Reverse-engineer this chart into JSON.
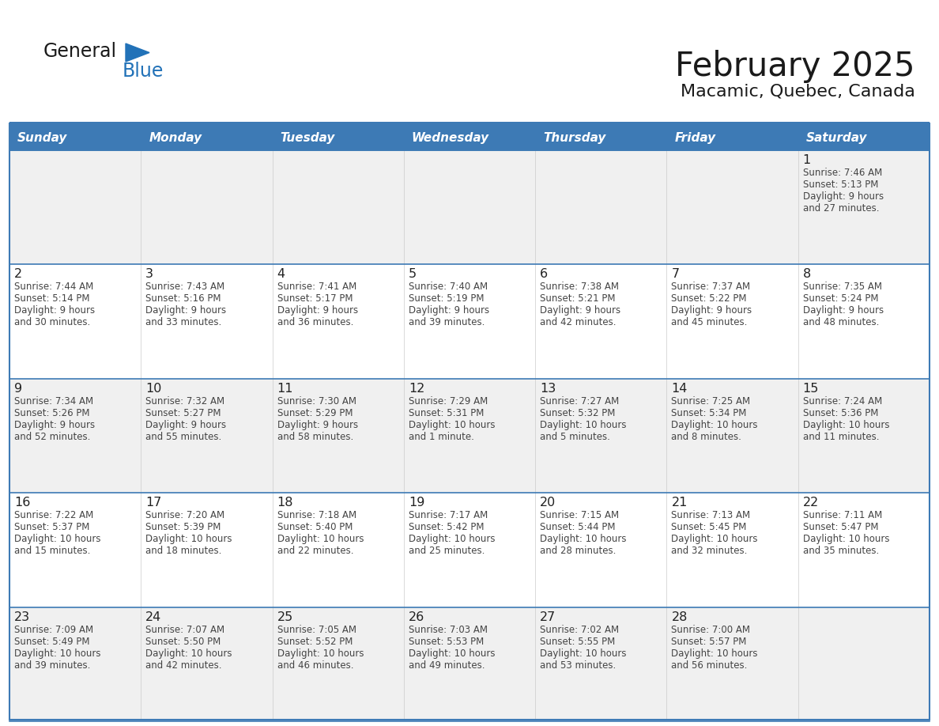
{
  "title": "February 2025",
  "subtitle": "Macamic, Quebec, Canada",
  "header_bg": "#3d7ab5",
  "header_text": "#ffffff",
  "row_bg_light": "#f0f0f0",
  "row_bg_white": "#ffffff",
  "border_color": "#3d7ab5",
  "cell_border": "#aaaaaa",
  "text_color": "#333333",
  "days_of_week": [
    "Sunday",
    "Monday",
    "Tuesday",
    "Wednesday",
    "Thursday",
    "Friday",
    "Saturday"
  ],
  "logo_black": "#1a1a1a",
  "logo_blue": "#2272b8",
  "calendar": [
    [
      null,
      null,
      null,
      null,
      null,
      null,
      {
        "day": "1",
        "sunrise": "7:46 AM",
        "sunset": "5:13 PM",
        "daylight": "9 hours",
        "daylight2": "and 27 minutes."
      }
    ],
    [
      {
        "day": "2",
        "sunrise": "7:44 AM",
        "sunset": "5:14 PM",
        "daylight": "9 hours",
        "daylight2": "and 30 minutes."
      },
      {
        "day": "3",
        "sunrise": "7:43 AM",
        "sunset": "5:16 PM",
        "daylight": "9 hours",
        "daylight2": "and 33 minutes."
      },
      {
        "day": "4",
        "sunrise": "7:41 AM",
        "sunset": "5:17 PM",
        "daylight": "9 hours",
        "daylight2": "and 36 minutes."
      },
      {
        "day": "5",
        "sunrise": "7:40 AM",
        "sunset": "5:19 PM",
        "daylight": "9 hours",
        "daylight2": "and 39 minutes."
      },
      {
        "day": "6",
        "sunrise": "7:38 AM",
        "sunset": "5:21 PM",
        "daylight": "9 hours",
        "daylight2": "and 42 minutes."
      },
      {
        "day": "7",
        "sunrise": "7:37 AM",
        "sunset": "5:22 PM",
        "daylight": "9 hours",
        "daylight2": "and 45 minutes."
      },
      {
        "day": "8",
        "sunrise": "7:35 AM",
        "sunset": "5:24 PM",
        "daylight": "9 hours",
        "daylight2": "and 48 minutes."
      }
    ],
    [
      {
        "day": "9",
        "sunrise": "7:34 AM",
        "sunset": "5:26 PM",
        "daylight": "9 hours",
        "daylight2": "and 52 minutes."
      },
      {
        "day": "10",
        "sunrise": "7:32 AM",
        "sunset": "5:27 PM",
        "daylight": "9 hours",
        "daylight2": "and 55 minutes."
      },
      {
        "day": "11",
        "sunrise": "7:30 AM",
        "sunset": "5:29 PM",
        "daylight": "9 hours",
        "daylight2": "and 58 minutes."
      },
      {
        "day": "12",
        "sunrise": "7:29 AM",
        "sunset": "5:31 PM",
        "daylight": "10 hours",
        "daylight2": "and 1 minute."
      },
      {
        "day": "13",
        "sunrise": "7:27 AM",
        "sunset": "5:32 PM",
        "daylight": "10 hours",
        "daylight2": "and 5 minutes."
      },
      {
        "day": "14",
        "sunrise": "7:25 AM",
        "sunset": "5:34 PM",
        "daylight": "10 hours",
        "daylight2": "and 8 minutes."
      },
      {
        "day": "15",
        "sunrise": "7:24 AM",
        "sunset": "5:36 PM",
        "daylight": "10 hours",
        "daylight2": "and 11 minutes."
      }
    ],
    [
      {
        "day": "16",
        "sunrise": "7:22 AM",
        "sunset": "5:37 PM",
        "daylight": "10 hours",
        "daylight2": "and 15 minutes."
      },
      {
        "day": "17",
        "sunrise": "7:20 AM",
        "sunset": "5:39 PM",
        "daylight": "10 hours",
        "daylight2": "and 18 minutes."
      },
      {
        "day": "18",
        "sunrise": "7:18 AM",
        "sunset": "5:40 PM",
        "daylight": "10 hours",
        "daylight2": "and 22 minutes."
      },
      {
        "day": "19",
        "sunrise": "7:17 AM",
        "sunset": "5:42 PM",
        "daylight": "10 hours",
        "daylight2": "and 25 minutes."
      },
      {
        "day": "20",
        "sunrise": "7:15 AM",
        "sunset": "5:44 PM",
        "daylight": "10 hours",
        "daylight2": "and 28 minutes."
      },
      {
        "day": "21",
        "sunrise": "7:13 AM",
        "sunset": "5:45 PM",
        "daylight": "10 hours",
        "daylight2": "and 32 minutes."
      },
      {
        "day": "22",
        "sunrise": "7:11 AM",
        "sunset": "5:47 PM",
        "daylight": "10 hours",
        "daylight2": "and 35 minutes."
      }
    ],
    [
      {
        "day": "23",
        "sunrise": "7:09 AM",
        "sunset": "5:49 PM",
        "daylight": "10 hours",
        "daylight2": "and 39 minutes."
      },
      {
        "day": "24",
        "sunrise": "7:07 AM",
        "sunset": "5:50 PM",
        "daylight": "10 hours",
        "daylight2": "and 42 minutes."
      },
      {
        "day": "25",
        "sunrise": "7:05 AM",
        "sunset": "5:52 PM",
        "daylight": "10 hours",
        "daylight2": "and 46 minutes."
      },
      {
        "day": "26",
        "sunrise": "7:03 AM",
        "sunset": "5:53 PM",
        "daylight": "10 hours",
        "daylight2": "and 49 minutes."
      },
      {
        "day": "27",
        "sunrise": "7:02 AM",
        "sunset": "5:55 PM",
        "daylight": "10 hours",
        "daylight2": "and 53 minutes."
      },
      {
        "day": "28",
        "sunrise": "7:00 AM",
        "sunset": "5:57 PM",
        "daylight": "10 hours",
        "daylight2": "and 56 minutes."
      },
      null
    ]
  ]
}
